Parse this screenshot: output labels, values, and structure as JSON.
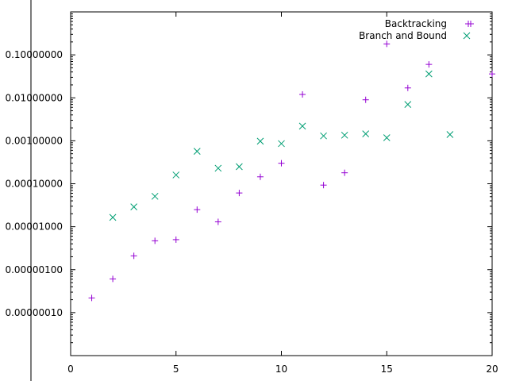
{
  "chart_data": {
    "type": "scatter",
    "title": "",
    "xlabel": "",
    "ylabel": "",
    "xlim": [
      0,
      20
    ],
    "ylim": [
      1e-08,
      1
    ],
    "y_scale": "log",
    "grid": false,
    "legend_position": "top-right",
    "x_ticks": [
      0,
      5,
      10,
      15,
      20
    ],
    "x_tick_labels": [
      "0",
      "5",
      "10",
      "15",
      "20"
    ],
    "y_ticks": [
      1e-07,
      1e-06,
      1e-05,
      0.0001,
      0.001,
      0.01,
      0.1
    ],
    "y_tick_labels": [
      "0.00000010",
      "0.00000100",
      "0.00001000",
      "0.00010000",
      "0.00100000",
      "0.01000000",
      "0.10000000"
    ],
    "series": [
      {
        "name": "Backtracking",
        "marker": "plus",
        "color": "#9400d3",
        "points": [
          {
            "x": 1,
            "y": 2.2e-07
          },
          {
            "x": 2,
            "y": 6.1e-07
          },
          {
            "x": 3,
            "y": 2.1e-06
          },
          {
            "x": 4,
            "y": 4.7e-06
          },
          {
            "x": 5,
            "y": 5e-06
          },
          {
            "x": 6,
            "y": 2.5e-05
          },
          {
            "x": 7,
            "y": 1.3e-05
          },
          {
            "x": 8,
            "y": 6.1e-05
          },
          {
            "x": 9,
            "y": 0.000145
          },
          {
            "x": 10,
            "y": 0.0003
          },
          {
            "x": 11,
            "y": 0.012
          },
          {
            "x": 12,
            "y": 9.3e-05
          },
          {
            "x": 13,
            "y": 0.00018
          },
          {
            "x": 14,
            "y": 0.009
          },
          {
            "x": 15,
            "y": 0.18
          },
          {
            "x": 16,
            "y": 0.017
          },
          {
            "x": 17,
            "y": 0.06
          },
          {
            "x": 20,
            "y": 0.036
          }
        ]
      },
      {
        "name": "Branch and Bound",
        "marker": "cross",
        "color": "#009e73",
        "points": [
          {
            "x": 2,
            "y": 1.65e-05
          },
          {
            "x": 3,
            "y": 2.9e-05
          },
          {
            "x": 4,
            "y": 5.1e-05
          },
          {
            "x": 5,
            "y": 0.00016
          },
          {
            "x": 6,
            "y": 0.00057
          },
          {
            "x": 7,
            "y": 0.00023
          },
          {
            "x": 8,
            "y": 0.00025
          },
          {
            "x": 9,
            "y": 0.00098
          },
          {
            "x": 10,
            "y": 0.00086
          },
          {
            "x": 11,
            "y": 0.0022
          },
          {
            "x": 12,
            "y": 0.0013
          },
          {
            "x": 13,
            "y": 0.00135
          },
          {
            "x": 14,
            "y": 0.00145
          },
          {
            "x": 15,
            "y": 0.00118
          },
          {
            "x": 16,
            "y": 0.007
          },
          {
            "x": 17,
            "y": 0.036
          },
          {
            "x": 18,
            "y": 0.0014
          }
        ]
      }
    ]
  }
}
